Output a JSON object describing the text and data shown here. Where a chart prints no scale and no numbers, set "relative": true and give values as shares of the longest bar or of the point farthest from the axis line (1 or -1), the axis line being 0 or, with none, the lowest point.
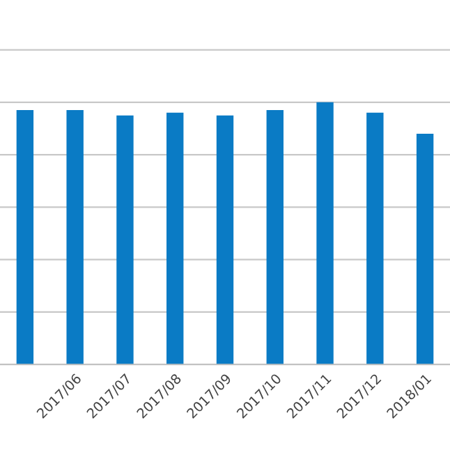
{
  "chart_data": {
    "type": "bar",
    "relative": true,
    "grid": "y",
    "categories": [
      null,
      "2017/06",
      "2017/07",
      "2017/08",
      "2017/09",
      "2017/10",
      "2017/11",
      "2017/12",
      "2018/01"
    ],
    "series": [
      {
        "color": "#0a7bc5",
        "values": [
          0.97,
          0.97,
          0.95,
          0.96,
          0.95,
          0.97,
          1,
          0.96,
          0.88
        ]
      }
    ]
  }
}
